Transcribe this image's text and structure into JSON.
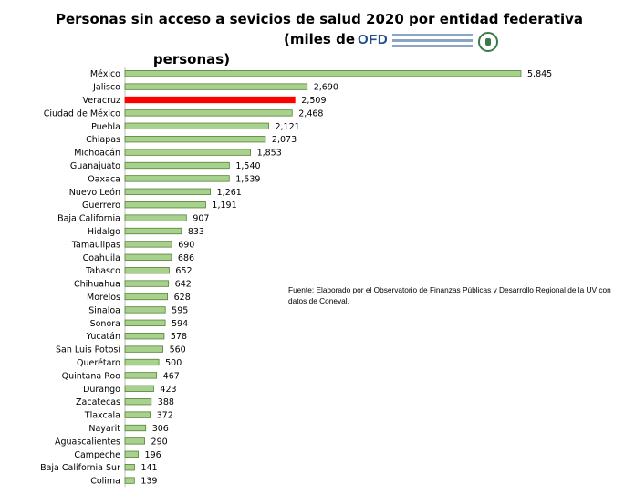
{
  "title_line1": "Personas sin acceso  a sevicios de salud  2020 por entidad federativa (miles de",
  "title_line2": "personas)",
  "logo": {
    "text": "OFD",
    "caption": "Observatorio de Finanzas Públicas y Desarrollo Regional",
    "icon": "seal-icon"
  },
  "source_note": "Fuente: Elaborado por el Observatorio de Finanzas Públicas y Desarrollo Regional de la UV con datos de Coneval.",
  "colors": {
    "bar": "#a9d18e",
    "bar_stroke": "#548235",
    "highlight": "#ff0000"
  },
  "chart_data": {
    "type": "bar",
    "orientation": "horizontal",
    "title": "Personas sin acceso  a sevicios de salud  2020 por entidad federativa (miles de personas)",
    "categories": [
      "México",
      "Jalisco",
      "Veracruz",
      "Ciudad de México",
      "Puebla",
      "Chiapas",
      "Michoacán",
      "Guanajuato",
      "Oaxaca",
      "Nuevo León",
      "Guerrero",
      "Baja California",
      "Hidalgo",
      "Tamaulipas",
      "Coahuila",
      "Tabasco",
      "Chihuahua",
      "Morelos",
      "Sinaloa",
      "Sonora",
      "Yucatán",
      "San Luis Potosí",
      "Querétaro",
      "Quintana Roo",
      "Durango",
      "Zacatecas",
      "Tlaxcala",
      "Nayarit",
      "Aguascalientes",
      "Campeche",
      "Baja California Sur",
      "Colima"
    ],
    "values": [
      5845,
      2690,
      2509,
      2468,
      2121,
      2073,
      1853,
      1540,
      1539,
      1261,
      1191,
      907,
      833,
      690,
      686,
      652,
      642,
      628,
      595,
      594,
      578,
      560,
      500,
      467,
      423,
      388,
      372,
      306,
      290,
      196,
      141,
      139
    ],
    "value_labels": [
      "5,845",
      "2,690",
      "2,509",
      "2,468",
      "2,121",
      "2,073",
      "1,853",
      "1,540",
      "1,539",
      "1,261",
      "1,191",
      "907",
      "833",
      "690",
      "686",
      "652",
      "642",
      "628",
      "595",
      "594",
      "578",
      "560",
      "500",
      "467",
      "423",
      "388",
      "372",
      "306",
      "290",
      "196",
      "141",
      "139"
    ],
    "highlight_category": "Veracruz",
    "xlim": [
      0,
      5845
    ],
    "xlabel": "",
    "ylabel": "",
    "grid": false,
    "legend": "none"
  }
}
